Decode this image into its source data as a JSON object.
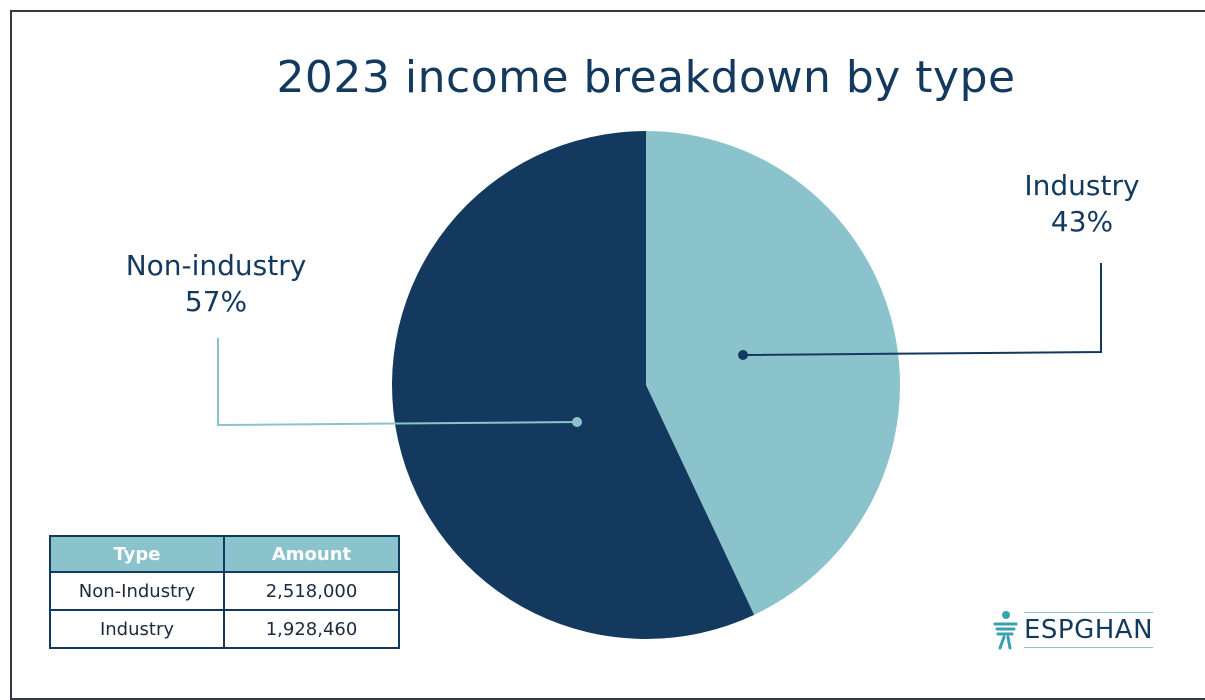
{
  "chart_data": {
    "type": "pie",
    "title": "2023 income breakdown by type",
    "slices": [
      {
        "name": "Industry",
        "percent_label": "43%",
        "value": 43,
        "color": "#8ac3cb"
      },
      {
        "name": "Non-industry",
        "percent_label": "57%",
        "value": 57,
        "color": "#133a5e"
      }
    ],
    "start_angle_deg": 0,
    "direction": "clockwise"
  },
  "table": {
    "headers": [
      "Type",
      "Amount"
    ],
    "rows": [
      [
        "Non-Industry",
        "2,518,000"
      ],
      [
        "Industry",
        "1,928,460"
      ]
    ]
  },
  "logo": {
    "text": "ESPGHAN",
    "icon": "espghan-figure-icon"
  }
}
